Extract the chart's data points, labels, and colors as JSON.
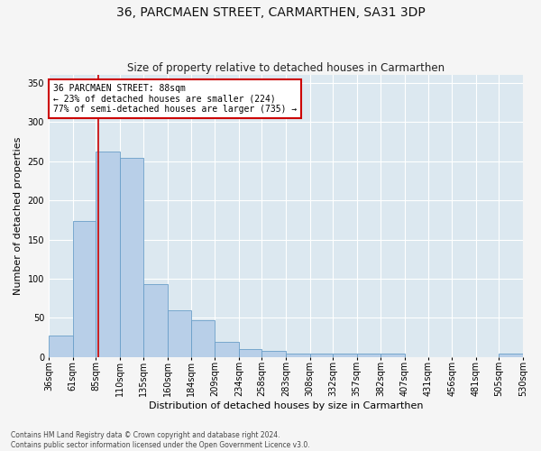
{
  "title": "36, PARCMAEN STREET, CARMARTHEN, SA31 3DP",
  "subtitle": "Size of property relative to detached houses in Carmarthen",
  "xlabel": "Distribution of detached houses by size in Carmarthen",
  "ylabel": "Number of detached properties",
  "bar_color": "#b8cfe8",
  "bar_edge_color": "#6a9fc8",
  "background_color": "#dce8f0",
  "grid_color": "#ffffff",
  "fig_background": "#f5f5f5",
  "property_size": 88,
  "property_line_color": "#cc0000",
  "annotation_line1": "36 PARCMAEN STREET: 88sqm",
  "annotation_line2": "← 23% of detached houses are smaller (224)",
  "annotation_line3": "77% of semi-detached houses are larger (735) →",
  "annotation_box_color": "#cc0000",
  "bins": [
    36,
    61,
    85,
    110,
    135,
    160,
    184,
    209,
    234,
    258,
    283,
    308,
    332,
    357,
    382,
    407,
    431,
    456,
    481,
    505,
    530
  ],
  "counts": [
    28,
    174,
    262,
    254,
    93,
    60,
    47,
    20,
    10,
    8,
    5,
    4,
    5,
    5,
    5,
    0,
    0,
    0,
    0,
    5
  ],
  "ylim": [
    0,
    360
  ],
  "yticks": [
    0,
    50,
    100,
    150,
    200,
    250,
    300,
    350
  ],
  "footer_line1": "Contains HM Land Registry data © Crown copyright and database right 2024.",
  "footer_line2": "Contains public sector information licensed under the Open Government Licence v3.0.",
  "title_fontsize": 10,
  "subtitle_fontsize": 8.5,
  "xlabel_fontsize": 8,
  "ylabel_fontsize": 8,
  "tick_fontsize": 7,
  "footer_fontsize": 5.5
}
